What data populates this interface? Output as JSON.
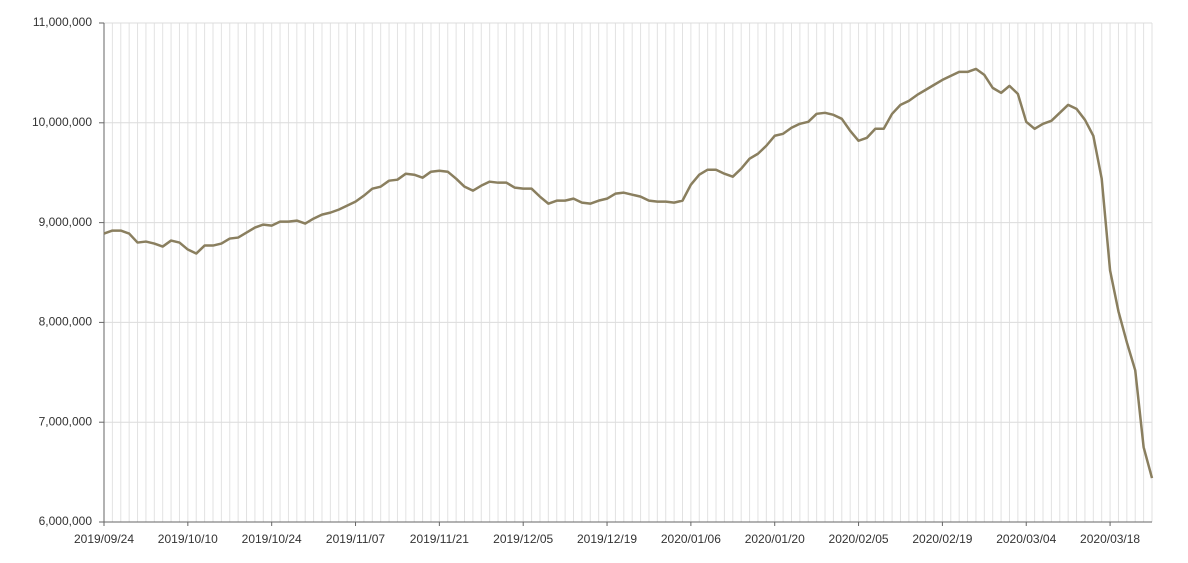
{
  "chart_data": {
    "type": "line",
    "categories": [
      "2019/09/24",
      null,
      null,
      null,
      null,
      null,
      null,
      null,
      null,
      null,
      "2019/10/10",
      null,
      null,
      null,
      null,
      null,
      null,
      null,
      null,
      null,
      "2019/10/24",
      null,
      null,
      null,
      null,
      null,
      null,
      null,
      null,
      null,
      "2019/11/07",
      null,
      null,
      null,
      null,
      null,
      null,
      null,
      null,
      null,
      "2019/11/21",
      null,
      null,
      null,
      null,
      null,
      null,
      null,
      null,
      null,
      "2019/12/05",
      null,
      null,
      null,
      null,
      null,
      null,
      null,
      null,
      null,
      "2019/12/19",
      null,
      null,
      null,
      null,
      null,
      null,
      null,
      null,
      null,
      "2020/01/06",
      null,
      null,
      null,
      null,
      null,
      null,
      null,
      null,
      null,
      "2020/01/20",
      null,
      null,
      null,
      null,
      null,
      null,
      null,
      null,
      null,
      "2020/02/05",
      null,
      null,
      null,
      null,
      null,
      null,
      null,
      null,
      null,
      "2020/02/19",
      null,
      null,
      null,
      null,
      null,
      null,
      null,
      null,
      null,
      "2020/03/04",
      null,
      null,
      null,
      null,
      null,
      null,
      null,
      null,
      null,
      "2020/03/18",
      null,
      null,
      null,
      null,
      null
    ],
    "values": [
      8890000,
      8920000,
      8920000,
      8890000,
      8800000,
      8810000,
      8790000,
      8760000,
      8820000,
      8800000,
      8730000,
      8690000,
      8770000,
      8770000,
      8790000,
      8840000,
      8850000,
      8900000,
      8950000,
      8980000,
      8970000,
      9010000,
      9010000,
      9020000,
      8990000,
      9040000,
      9080000,
      9100000,
      9130000,
      9170000,
      9210000,
      9270000,
      9340000,
      9360000,
      9420000,
      9430000,
      9490000,
      9480000,
      9450000,
      9510000,
      9520000,
      9510000,
      9440000,
      9360000,
      9320000,
      9370000,
      9410000,
      9400000,
      9400000,
      9350000,
      9340000,
      9340000,
      9260000,
      9190000,
      9220000,
      9220000,
      9240000,
      9200000,
      9190000,
      9220000,
      9240000,
      9290000,
      9300000,
      9280000,
      9260000,
      9220000,
      9210000,
      9210000,
      9200000,
      9220000,
      9380000,
      9480000,
      9530000,
      9530000,
      9490000,
      9460000,
      9540000,
      9640000,
      9690000,
      9770000,
      9870000,
      9890000,
      9950000,
      9990000,
      10010000,
      10090000,
      10100000,
      10080000,
      10040000,
      9920000,
      9820000,
      9850000,
      9940000,
      9940000,
      10090000,
      10180000,
      10220000,
      10280000,
      10330000,
      10380000,
      10430000,
      10470000,
      10510000,
      10510000,
      10540000,
      10480000,
      10350000,
      10300000,
      10370000,
      10290000,
      10010000,
      9940000,
      9990000,
      10020000,
      10100000,
      10180000,
      10140000,
      10030000,
      9870000,
      9440000,
      8520000,
      8110000,
      7800000,
      7520000,
      6750000,
      6440000
    ],
    "color": "#8a7f5f",
    "ylim": [
      6000000,
      11000000
    ],
    "yticks": [
      {
        "value": 6000000,
        "label": "6,000,000"
      },
      {
        "value": 7000000,
        "label": "7,000,000"
      },
      {
        "value": 8000000,
        "label": "8,000,000"
      },
      {
        "value": 9000000,
        "label": "9,000,000"
      },
      {
        "value": 10000000,
        "label": "10,000,000"
      },
      {
        "value": 11000000,
        "label": "11,000,000"
      }
    ],
    "grid": true
  }
}
